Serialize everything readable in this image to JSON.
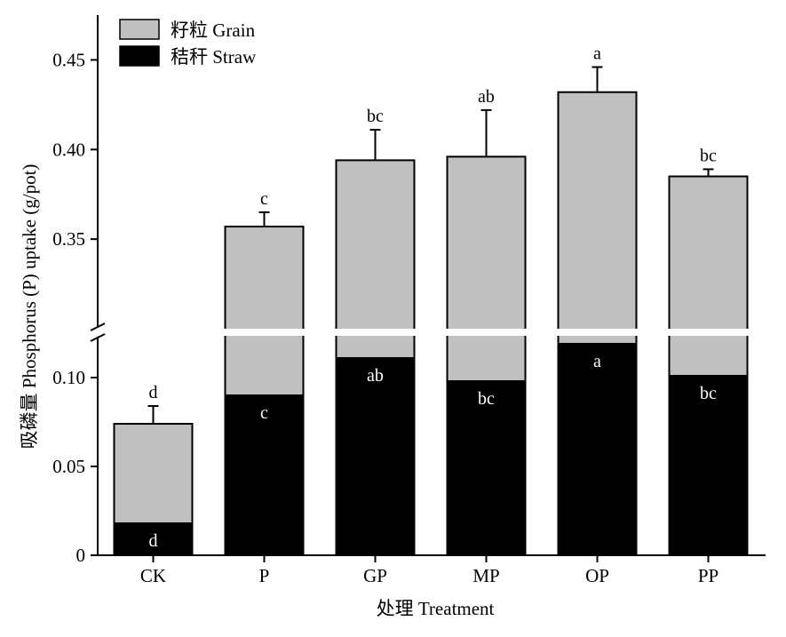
{
  "chart_data": {
    "type": "bar",
    "stacked": true,
    "broken_y_axis": true,
    "categories": [
      "CK",
      "P",
      "GP",
      "MP",
      "OP",
      "PP"
    ],
    "series": [
      {
        "name": "秸秆 Straw",
        "color": "#000000",
        "values": [
          0.018,
          0.09,
          0.111,
          0.098,
          0.119,
          0.101
        ],
        "sig_labels": [
          "d",
          "c",
          "ab",
          "bc",
          "a",
          "bc"
        ],
        "sig_label_color": "#ffffff"
      },
      {
        "name": "籽粒 Grain",
        "color": "#c0c0c0",
        "totals": [
          0.074,
          0.357,
          0.394,
          0.396,
          0.432,
          0.385
        ],
        "error_plus": [
          0.01,
          0.008,
          0.017,
          0.026,
          0.014,
          0.004
        ],
        "sig_labels": [
          "d",
          "c",
          "bc",
          "ab",
          "a",
          "bc"
        ],
        "sig_label_color": "#000000"
      }
    ],
    "xlabel": "处理 Treatment",
    "ylabel": "吸磷量 Phosphorus (P) uptake (g/pot)",
    "y_segments": [
      {
        "range": [
          0,
          0.125
        ],
        "ticks": [
          0,
          0.05,
          0.1
        ],
        "tick_labels": [
          "0",
          "0.05",
          "0.10"
        ]
      },
      {
        "range": [
          0.3,
          0.475
        ],
        "ticks": [
          0.35,
          0.4,
          0.45
        ],
        "tick_labels": [
          "0.35",
          "0.40",
          "0.45"
        ]
      }
    ],
    "grid": false,
    "legend_position": "top-left"
  }
}
